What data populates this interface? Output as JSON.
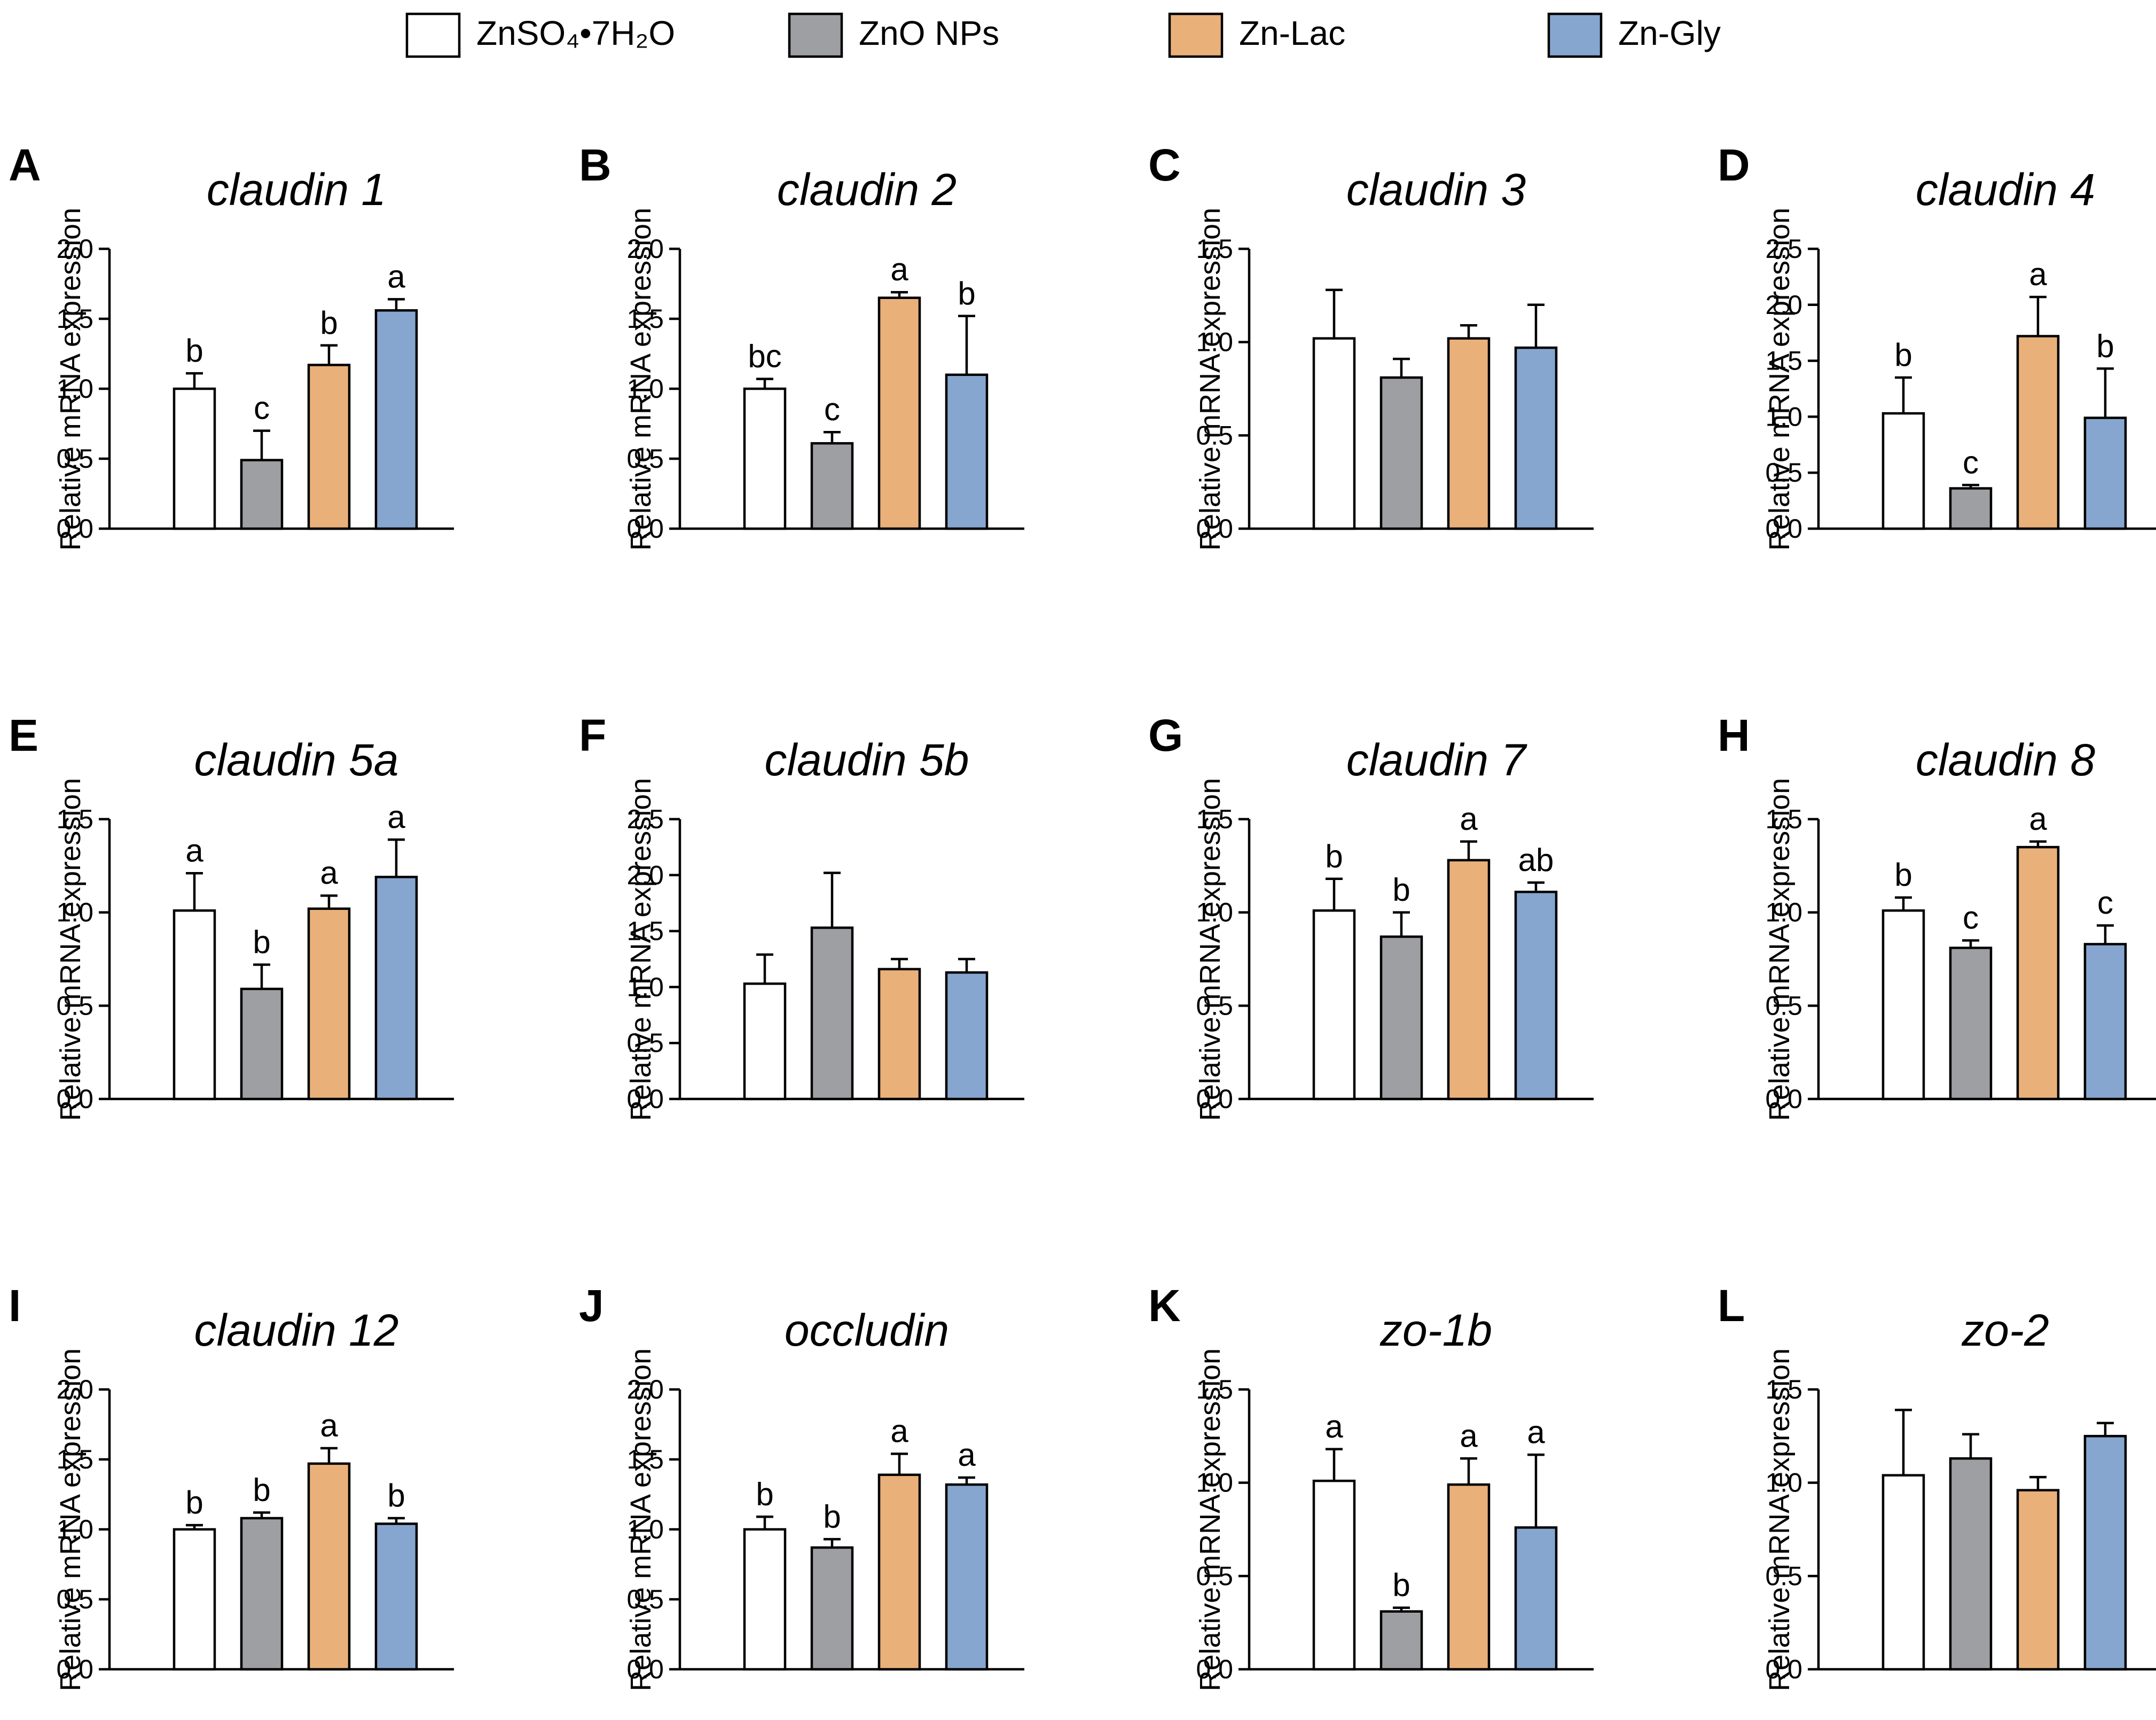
{
  "legend": [
    {
      "label": "ZnSO₄•7H₂O",
      "color": "#ffffff"
    },
    {
      "label": "ZnO NPs",
      "color": "#9d9fa2"
    },
    {
      "label": "Zn-Lac",
      "color": "#e9b07a"
    },
    {
      "label": "Zn-Gly",
      "color": "#86a6cf"
    }
  ],
  "y_axis_label": "Relative mRNA expression",
  "chart_data": [
    {
      "type": "bar",
      "panel": "A",
      "title": "claudin 1",
      "ylim": [
        0,
        2.0
      ],
      "ticks": [
        "0.0",
        "0.5",
        "1.0",
        "1.5",
        "2.0"
      ],
      "categories": [
        "ZnSO₄•7H₂O",
        "ZnO NPs",
        "Zn-Lac",
        "Zn-Gly"
      ],
      "values": [
        1.0,
        0.49,
        1.17,
        1.56
      ],
      "errors": [
        0.11,
        0.21,
        0.14,
        0.08
      ],
      "labels": [
        "b",
        "c",
        "b",
        "a"
      ]
    },
    {
      "type": "bar",
      "panel": "B",
      "title": "claudin 2",
      "ylim": [
        0,
        2.0
      ],
      "ticks": [
        "0.0",
        "0.5",
        "1.0",
        "1.5",
        "2.0"
      ],
      "categories": [
        "ZnSO₄•7H₂O",
        "ZnO NPs",
        "Zn-Lac",
        "Zn-Gly"
      ],
      "values": [
        1.0,
        0.61,
        1.65,
        1.1
      ],
      "errors": [
        0.07,
        0.08,
        0.04,
        0.42
      ],
      "labels": [
        "bc",
        "c",
        "a",
        "b"
      ]
    },
    {
      "type": "bar",
      "panel": "C",
      "title": "claudin 3",
      "ylim": [
        0,
        1.5
      ],
      "ticks": [
        "0.0",
        "0.5",
        "1.0",
        "1.5"
      ],
      "categories": [
        "ZnSO₄•7H₂O",
        "ZnO NPs",
        "Zn-Lac",
        "Zn-Gly"
      ],
      "values": [
        1.02,
        0.81,
        1.02,
        0.97
      ],
      "errors": [
        0.26,
        0.1,
        0.07,
        0.23
      ],
      "labels": [
        "",
        "",
        "",
        ""
      ]
    },
    {
      "type": "bar",
      "panel": "D",
      "title": "claudin 4",
      "ylim": [
        0,
        2.5
      ],
      "ticks": [
        "0.0",
        "0.5",
        "1.0",
        "1.5",
        "2.0",
        "2.5"
      ],
      "categories": [
        "ZnSO₄•7H₂O",
        "ZnO NPs",
        "Zn-Lac",
        "Zn-Gly"
      ],
      "values": [
        1.03,
        0.36,
        1.72,
        0.99
      ],
      "errors": [
        0.32,
        0.03,
        0.35,
        0.44
      ],
      "labels": [
        "b",
        "c",
        "a",
        "b"
      ]
    },
    {
      "type": "bar",
      "panel": "E",
      "title": "claudin 5a",
      "ylim": [
        0,
        1.5
      ],
      "ticks": [
        "0.0",
        "0.5",
        "1.0",
        "1.5"
      ],
      "categories": [
        "ZnSO₄•7H₂O",
        "ZnO NPs",
        "Zn-Lac",
        "Zn-Gly"
      ],
      "values": [
        1.01,
        0.59,
        1.02,
        1.19
      ],
      "errors": [
        0.2,
        0.13,
        0.07,
        0.2
      ],
      "labels": [
        "a",
        "b",
        "a",
        "a"
      ]
    },
    {
      "type": "bar",
      "panel": "F",
      "title": "claudin 5b",
      "ylim": [
        0,
        2.5
      ],
      "ticks": [
        "0.0",
        "0.5",
        "1.0",
        "1.5",
        "2.0",
        "2.5"
      ],
      "categories": [
        "ZnSO₄•7H₂O",
        "ZnO NPs",
        "Zn-Lac",
        "Zn-Gly"
      ],
      "values": [
        1.03,
        1.53,
        1.16,
        1.13
      ],
      "errors": [
        0.26,
        0.49,
        0.09,
        0.12
      ],
      "labels": [
        "",
        "",
        "",
        ""
      ]
    },
    {
      "type": "bar",
      "panel": "G",
      "title": "claudin 7",
      "ylim": [
        0,
        1.5
      ],
      "ticks": [
        "0.0",
        "0.5",
        "1.0",
        "1.5"
      ],
      "categories": [
        "ZnSO₄•7H₂O",
        "ZnO NPs",
        "Zn-Lac",
        "Zn-Gly"
      ],
      "values": [
        1.01,
        0.87,
        1.28,
        1.11
      ],
      "errors": [
        0.17,
        0.13,
        0.1,
        0.05
      ],
      "labels": [
        "b",
        "b",
        "a",
        "ab"
      ]
    },
    {
      "type": "bar",
      "panel": "H",
      "title": "claudin 8",
      "ylim": [
        0,
        1.5
      ],
      "ticks": [
        "0.0",
        "0.5",
        "1.0",
        "1.5"
      ],
      "categories": [
        "ZnSO₄•7H₂O",
        "ZnO NPs",
        "Zn-Lac",
        "Zn-Gly"
      ],
      "values": [
        1.01,
        0.81,
        1.35,
        0.83
      ],
      "errors": [
        0.07,
        0.04,
        0.03,
        0.1
      ],
      "labels": [
        "b",
        "c",
        "a",
        "c"
      ]
    },
    {
      "type": "bar",
      "panel": "I",
      "title": "claudin 12",
      "ylim": [
        0,
        2.0
      ],
      "ticks": [
        "0.0",
        "0.5",
        "1.0",
        "1.5",
        "2.0"
      ],
      "categories": [
        "ZnSO₄•7H₂O",
        "ZnO NPs",
        "Zn-Lac",
        "Zn-Gly"
      ],
      "values": [
        1.0,
        1.08,
        1.47,
        1.04
      ],
      "errors": [
        0.03,
        0.04,
        0.11,
        0.04
      ],
      "labels": [
        "b",
        "b",
        "a",
        "b"
      ]
    },
    {
      "type": "bar",
      "panel": "J",
      "title": "occludin",
      "ylim": [
        0,
        2.0
      ],
      "ticks": [
        "0.0",
        "0.5",
        "1.0",
        "1.5",
        "2.0"
      ],
      "categories": [
        "ZnSO₄•7H₂O",
        "ZnO NPs",
        "Zn-Lac",
        "Zn-Gly"
      ],
      "values": [
        1.0,
        0.87,
        1.39,
        1.32
      ],
      "errors": [
        0.09,
        0.06,
        0.15,
        0.05
      ],
      "labels": [
        "b",
        "b",
        "a",
        "a"
      ]
    },
    {
      "type": "bar",
      "panel": "K",
      "title": "zo-1b",
      "ylim": [
        0,
        1.5
      ],
      "ticks": [
        "0.0",
        "0.5",
        "1.0",
        "1.5"
      ],
      "categories": [
        "ZnSO₄•7H₂O",
        "ZnO NPs",
        "Zn-Lac",
        "Zn-Gly"
      ],
      "values": [
        1.01,
        0.31,
        0.99,
        0.76
      ],
      "errors": [
        0.17,
        0.02,
        0.14,
        0.39
      ],
      "labels": [
        "a",
        "b",
        "a",
        "a"
      ]
    },
    {
      "type": "bar",
      "panel": "L",
      "title": "zo-2",
      "ylim": [
        0,
        1.5
      ],
      "ticks": [
        "0.0",
        "0.5",
        "1.0",
        "1.5"
      ],
      "categories": [
        "ZnSO₄•7H₂O",
        "ZnO NPs",
        "Zn-Lac",
        "Zn-Gly"
      ],
      "values": [
        1.04,
        1.13,
        0.96,
        1.25
      ],
      "errors": [
        0.35,
        0.13,
        0.07,
        0.07
      ],
      "labels": [
        "",
        "",
        "",
        ""
      ]
    }
  ]
}
